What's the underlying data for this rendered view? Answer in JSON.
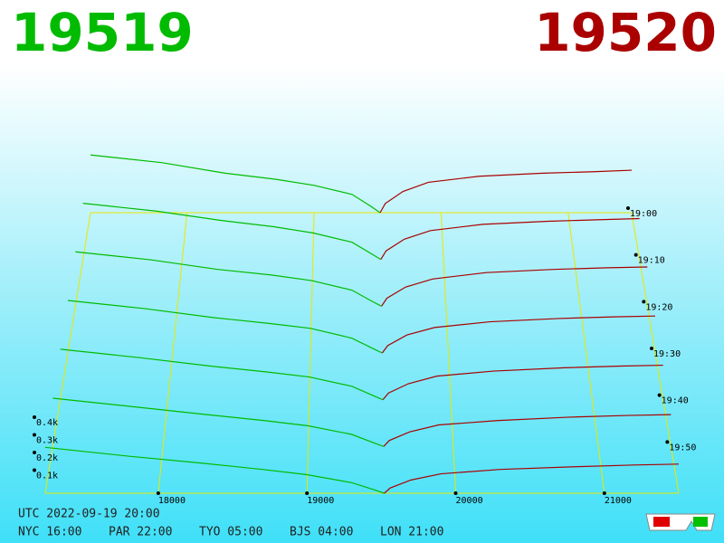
{
  "chart_data": {
    "type": "depth3d",
    "bid_title": "19519",
    "ask_title": "19520",
    "bid_color": "#00bb00",
    "ask_color": "#aa0000",
    "grid_color": "#e8e800",
    "xlim": [
      17240,
      21500
    ],
    "xticks": [
      18000,
      19000,
      20000,
      21000
    ],
    "zlim": [
      0,
      60
    ],
    "zticks": [
      {
        "value": 0,
        "label": "19:00"
      },
      {
        "value": 10,
        "label": "19:10"
      },
      {
        "value": 20,
        "label": "19:20"
      },
      {
        "value": 30,
        "label": "19:30"
      },
      {
        "value": 40,
        "label": "19:40"
      },
      {
        "value": 50,
        "label": "19:50"
      }
    ],
    "yticks": [
      {
        "value": 100,
        "label": "0.1k"
      },
      {
        "value": 200,
        "label": "0.2k"
      },
      {
        "value": 300,
        "label": "0.3k"
      },
      {
        "value": 400,
        "label": "0.4k"
      }
    ],
    "slices": [
      {
        "t": 0,
        "bid_prices": [
          19519,
          19450,
          19300,
          19000,
          18700,
          18300,
          17800,
          17240
        ],
        "bid_depths": [
          0,
          40,
          120,
          180,
          220,
          260,
          330,
          380
        ],
        "ask_prices": [
          19520,
          19560,
          19700,
          19900,
          20300,
          20800,
          21200,
          21500
        ],
        "ask_depths": [
          0,
          60,
          140,
          200,
          240,
          260,
          270,
          280
        ]
      },
      {
        "t": 10,
        "bid_prices": [
          19519,
          19450,
          19300,
          19000,
          18700,
          18300,
          17800,
          17240
        ],
        "bid_depths": [
          0,
          35,
          110,
          170,
          210,
          250,
          310,
          360
        ],
        "ask_prices": [
          19520,
          19560,
          19700,
          19900,
          20300,
          20800,
          21200,
          21500
        ],
        "ask_depths": [
          0,
          55,
          130,
          185,
          225,
          245,
          255,
          262
        ]
      },
      {
        "t": 20,
        "bid_prices": [
          19519,
          19450,
          19300,
          19000,
          18700,
          18300,
          17800,
          17240
        ],
        "bid_depths": [
          0,
          30,
          100,
          160,
          195,
          230,
          290,
          340
        ],
        "ask_prices": [
          19520,
          19560,
          19700,
          19900,
          20300,
          20800,
          21200,
          21500
        ],
        "ask_depths": [
          0,
          50,
          120,
          170,
          210,
          230,
          240,
          245
        ]
      },
      {
        "t": 30,
        "bid_prices": [
          19519,
          19450,
          19300,
          19000,
          18700,
          18300,
          17800,
          17240
        ],
        "bid_depths": [
          0,
          28,
          90,
          150,
          180,
          215,
          270,
          320
        ],
        "ask_prices": [
          19520,
          19560,
          19700,
          19900,
          20300,
          20800,
          21200,
          21500
        ],
        "ask_depths": [
          0,
          45,
          110,
          155,
          190,
          210,
          220,
          225
        ]
      },
      {
        "t": 40,
        "bid_prices": [
          19519,
          19450,
          19300,
          19000,
          18700,
          18300,
          17800,
          17240
        ],
        "bid_depths": [
          0,
          25,
          80,
          135,
          165,
          200,
          250,
          300
        ],
        "ask_prices": [
          19520,
          19560,
          19700,
          19900,
          20300,
          20800,
          21200,
          21500
        ],
        "ask_depths": [
          0,
          40,
          95,
          140,
          170,
          190,
          200,
          205
        ]
      },
      {
        "t": 50,
        "bid_prices": [
          19519,
          19450,
          19300,
          19000,
          18700,
          18300,
          17800,
          17240
        ],
        "bid_depths": [
          0,
          22,
          70,
          120,
          150,
          185,
          230,
          280
        ],
        "ask_prices": [
          19520,
          19560,
          19700,
          19900,
          20300,
          20800,
          21200,
          21500
        ],
        "ask_depths": [
          0,
          35,
          85,
          125,
          150,
          170,
          180,
          185
        ]
      },
      {
        "t": 60,
        "bid_prices": [
          19519,
          19450,
          19300,
          19000,
          18700,
          18300,
          17800,
          17240
        ],
        "bid_depths": [
          0,
          20,
          60,
          105,
          135,
          170,
          210,
          260
        ],
        "ask_prices": [
          19520,
          19560,
          19700,
          19900,
          20300,
          20800,
          21200,
          21500
        ],
        "ask_depths": [
          0,
          30,
          75,
          110,
          135,
          150,
          160,
          165
        ]
      }
    ],
    "footer": [
      "UTC 2022-09-19 20:00",
      "NYC 16:00",
      "PAR 22:00",
      "TYO 05:00",
      "BJS 04:00",
      "LON 21:00"
    ]
  }
}
